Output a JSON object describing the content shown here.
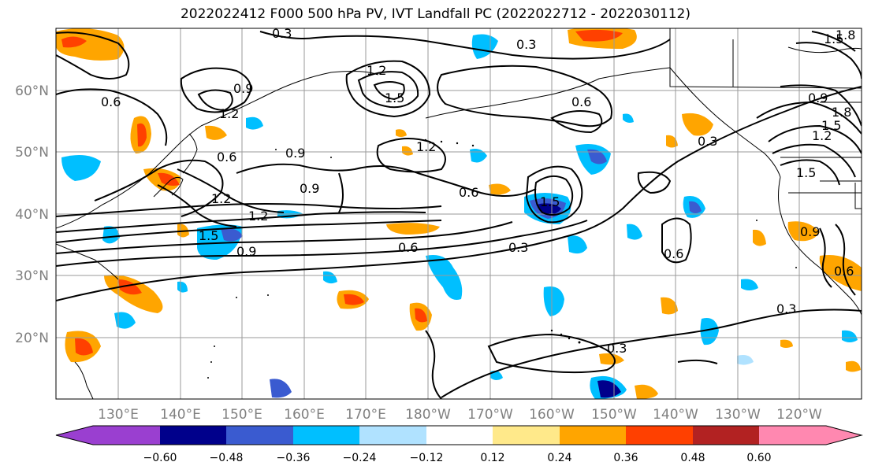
{
  "title": "2022022412 F000 500 hPa PV, IVT Landfall PC (2022022712 - 2022030112)",
  "lon_labels": [
    "130°E",
    "140°E",
    "150°E",
    "160°E",
    "170°E",
    "180°W",
    "170°W",
    "160°W",
    "150°W",
    "140°W",
    "130°W",
    "120°W"
  ],
  "lat_labels": [
    "60°N",
    "50°N",
    "40°N",
    "30°N",
    "20°N"
  ],
  "colorbar": {
    "labels": [
      "−0.60",
      "−0.48",
      "−0.36",
      "−0.24",
      "−0.12",
      "0.12",
      "0.24",
      "0.36",
      "0.48",
      "0.60"
    ],
    "colors": [
      "#9a3fd0",
      "#00008b",
      "#3a5bd0",
      "#00bfff",
      "#b0e2ff",
      "#ffffff",
      "#ffe98a",
      "#ffa500",
      "#ff4000",
      "#b22222",
      "#ff88b0"
    ]
  },
  "contour_labels": [
    "0.3",
    "0.3",
    "0.3",
    "0.3",
    "0.3",
    "0.3",
    "0.6",
    "0.6",
    "0.6",
    "0.6",
    "0.6",
    "0.6",
    "0.6",
    "0.9",
    "0.9",
    "0.9",
    "0.9",
    "0.9",
    "1.2",
    "1.2",
    "1.2",
    "1.2",
    "1.2",
    "1.5",
    "1.5",
    "1.5",
    "1.5",
    "1.5",
    "1.8",
    "0.9",
    "1.2",
    "1.5",
    "1.8"
  ],
  "chart_data": {
    "type": "map",
    "title": "2022022412 F000 500 hPa PV, IVT Landfall PC (2022022712 - 2022030112)",
    "projection": "plate carree",
    "lon_range": [
      120,
      250
    ],
    "lat_range": [
      10,
      70
    ],
    "fill_levels": [
      -0.6,
      -0.48,
      -0.36,
      -0.24,
      -0.12,
      0.12,
      0.24,
      0.36,
      0.48,
      0.6
    ],
    "contour_levels": [
      0.3,
      0.6,
      0.9,
      1.2,
      1.5,
      1.8
    ],
    "grid": true
  }
}
